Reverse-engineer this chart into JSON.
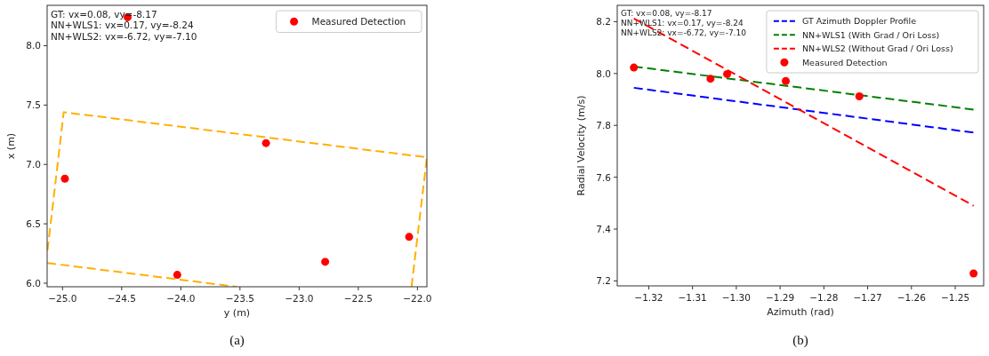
{
  "chart_data": [
    {
      "type": "scatter",
      "xlabel": "y (m)",
      "ylabel": "x (m)",
      "xlim": [
        -25.13,
        -21.92
      ],
      "ylim": [
        5.97,
        8.34
      ],
      "xticks": [
        {
          "value": -25,
          "label": "−25.0"
        },
        {
          "value": -24.5,
          "label": "−24.5"
        },
        {
          "value": -24,
          "label": "−24.0"
        },
        {
          "value": -23.5,
          "label": "−23.5"
        },
        {
          "value": -23,
          "label": "−23.0"
        },
        {
          "value": -22.5,
          "label": "−22.5"
        },
        {
          "value": -22,
          "label": "−22.0"
        }
      ],
      "yticks": [
        {
          "value": 6,
          "label": "6.0"
        },
        {
          "value": 6.5,
          "label": "6.5"
        },
        {
          "value": 7,
          "label": "7.0"
        },
        {
          "value": 7.5,
          "label": "7.5"
        },
        {
          "value": 8,
          "label": "8.0"
        }
      ],
      "grid": false,
      "legend": "top right",
      "series": [
        {
          "type": "line",
          "color": "#ffb000",
          "line_style": "dashed",
          "x": [
            -22.05,
            -21.92,
            -24.99,
            -25.13
          ],
          "values": [
            5.97,
            7.06,
            7.44,
            6.25
          ]
        },
        {
          "type": "line",
          "color": "#ffb000",
          "line_style": "dashed",
          "x": [
            -25.13,
            -23.53
          ],
          "values": [
            6.17,
            5.97
          ]
        },
        {
          "name": "Measured Detection",
          "color": "#ff0000",
          "marker": "circle",
          "x": [
            -24.45,
            -24.98,
            -23.28,
            -24.03,
            -22.78,
            -22.07
          ],
          "values": [
            8.24,
            6.88,
            7.18,
            6.07,
            6.18,
            6.39
          ]
        }
      ],
      "annotations": [
        "GT: vx=0.08, vy=-8.17",
        "NN+WLS1: vx=0.17, vy=-8.24",
        "NN+WLS2: vx=-6.72, vy=-7.10",
        "(a)"
      ]
    },
    {
      "type": "line",
      "xlabel": "Azimuth (rad)",
      "ylabel": "Radial Velocity (m/s)",
      "xlim": [
        -1.3272,
        -1.2435
      ],
      "ylim": [
        7.181,
        8.263
      ],
      "xticks": [
        {
          "value": -1.32,
          "label": "−1.32"
        },
        {
          "value": -1.31,
          "label": "−1.31"
        },
        {
          "value": -1.3,
          "label": "−1.30"
        },
        {
          "value": -1.29,
          "label": "−1.29"
        },
        {
          "value": -1.28,
          "label": "−1.28"
        },
        {
          "value": -1.27,
          "label": "−1.27"
        },
        {
          "value": -1.26,
          "label": "−1.26"
        },
        {
          "value": -1.25,
          "label": "−1.25"
        }
      ],
      "yticks": [
        {
          "value": 7.2,
          "label": "7.2"
        },
        {
          "value": 7.4,
          "label": "7.4"
        },
        {
          "value": 7.6,
          "label": "7.6"
        },
        {
          "value": 7.8,
          "label": "7.8"
        },
        {
          "value": 8,
          "label": "8.0"
        },
        {
          "value": 8.2,
          "label": "8.2"
        }
      ],
      "grid": false,
      "legend": "top right",
      "series": [
        {
          "name": "GT Azimuth Doppler Profile",
          "color": "#0000ff",
          "line_style": "dashed",
          "x": [
            -1.3234,
            -1.2458
          ],
          "values": [
            7.945,
            7.772
          ]
        },
        {
          "name": "NN+WLS1 (With Grad / Ori Loss)",
          "color": "#008000",
          "line_style": "dashed",
          "x": [
            -1.3234,
            -1.2458
          ],
          "values": [
            8.027,
            7.861
          ]
        },
        {
          "name": "NN+WLS2 (Without Grad / Ori Loss)",
          "color": "#ff0000",
          "line_style": "dashed",
          "x": [
            -1.3234,
            -1.2458
          ],
          "values": [
            8.212,
            7.49
          ]
        },
        {
          "type": "scatter",
          "name": "Measured Detection",
          "color": "#ff0000",
          "marker": "circle",
          "x": [
            -1.3234,
            -1.3059,
            -1.3021,
            -1.2887,
            -1.2719,
            -1.2458
          ],
          "values": [
            8.023,
            7.98,
            7.998,
            7.971,
            7.912,
            7.229
          ]
        }
      ],
      "annotations": [
        "GT: vx=0.08, vy=-8.17",
        "NN+WLS1: vx=0.17, vy=-8.24",
        "NN+WLS2: vx=-6.72, vy=-7.10",
        "(b)"
      ]
    }
  ]
}
